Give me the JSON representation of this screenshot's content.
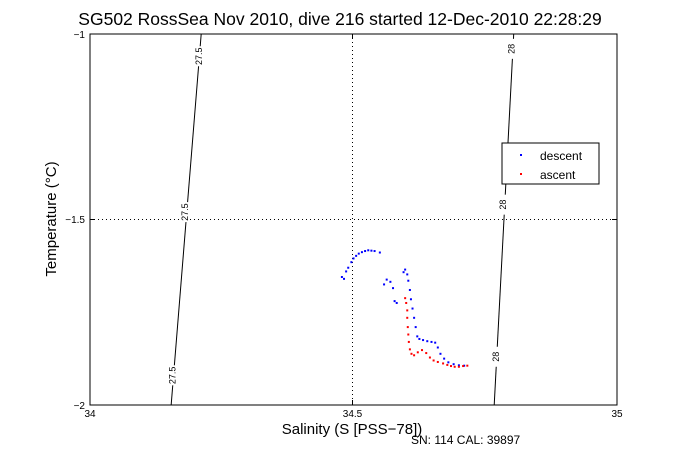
{
  "chart_data": {
    "type": "scatter",
    "title": "SG502 RossSea Nov 2010, dive 216 started 12-Dec-2010 22:28:29",
    "xlabel": "Salinity (S [PSS−78])",
    "ylabel": "Temperature (°C)",
    "xlim": [
      34,
      35
    ],
    "ylim": [
      -2,
      -1
    ],
    "x_ticks": [
      "34",
      "34.5",
      "35"
    ],
    "y_ticks": [
      "−1",
      "−1.5",
      "−2"
    ],
    "grid": "dotted at 34.5 and −1.5",
    "legend_position": "right",
    "footnote": "SN: 114  CAL: 39897",
    "isopycnals": [
      {
        "label": "27.5",
        "points": [
          [
            34.211,
            -1.0
          ],
          [
            34.154,
            -2.0
          ]
        ]
      },
      {
        "label": "28",
        "points": [
          [
            34.804,
            -1.0
          ],
          [
            34.767,
            -2.0
          ]
        ]
      }
    ],
    "isopycnal_labels": [
      {
        "text": "27.5",
        "x": 34.207,
        "y": -1.06
      },
      {
        "text": "27.5",
        "x": 34.18,
        "y": -1.48
      },
      {
        "text": "27.5",
        "x": 34.157,
        "y": -1.92
      },
      {
        "text": "28",
        "x": 34.8,
        "y": -1.04
      },
      {
        "text": "28",
        "x": 34.784,
        "y": -1.46
      },
      {
        "text": "28",
        "x": 34.77,
        "y": -1.87
      }
    ],
    "series": [
      {
        "name": "descent",
        "color": "#0000ff",
        "points": [
          [
            34.478,
            -1.655
          ],
          [
            34.482,
            -1.66
          ],
          [
            34.486,
            -1.64
          ],
          [
            34.49,
            -1.63
          ],
          [
            34.496,
            -1.615
          ],
          [
            34.5,
            -1.605
          ],
          [
            34.505,
            -1.598
          ],
          [
            34.51,
            -1.592
          ],
          [
            34.516,
            -1.588
          ],
          [
            34.522,
            -1.585
          ],
          [
            34.528,
            -1.583
          ],
          [
            34.534,
            -1.584
          ],
          [
            34.54,
            -1.585
          ],
          [
            34.55,
            -1.589
          ],
          [
            34.558,
            -1.675
          ],
          [
            34.563,
            -1.662
          ],
          [
            34.57,
            -1.668
          ],
          [
            34.575,
            -1.685
          ],
          [
            34.578,
            -1.72
          ],
          [
            34.582,
            -1.725
          ],
          [
            34.595,
            -1.642
          ],
          [
            34.598,
            -1.635
          ],
          [
            34.602,
            -1.648
          ],
          [
            34.604,
            -1.665
          ],
          [
            34.607,
            -1.69
          ],
          [
            34.609,
            -1.715
          ],
          [
            34.612,
            -1.74
          ],
          [
            34.615,
            -1.765
          ],
          [
            34.618,
            -1.79
          ],
          [
            34.621,
            -1.815
          ],
          [
            34.625,
            -1.822
          ],
          [
            34.632,
            -1.825
          ],
          [
            34.64,
            -1.828
          ],
          [
            34.648,
            -1.83
          ],
          [
            34.655,
            -1.832
          ],
          [
            34.66,
            -1.845
          ],
          [
            34.665,
            -1.862
          ],
          [
            34.672,
            -1.875
          ],
          [
            34.68,
            -1.885
          ],
          [
            34.69,
            -1.89
          ],
          [
            34.7,
            -1.893
          ],
          [
            34.71,
            -1.894
          ]
        ]
      },
      {
        "name": "ascent",
        "color": "#ff0000",
        "points": [
          [
            34.598,
            -1.712
          ],
          [
            34.6,
            -1.725
          ],
          [
            34.602,
            -1.745
          ],
          [
            34.602,
            -1.765
          ],
          [
            34.603,
            -1.79
          ],
          [
            34.604,
            -1.81
          ],
          [
            34.605,
            -1.83
          ],
          [
            34.607,
            -1.85
          ],
          [
            34.61,
            -1.862
          ],
          [
            34.615,
            -1.866
          ],
          [
            34.622,
            -1.858
          ],
          [
            34.63,
            -1.852
          ],
          [
            34.638,
            -1.86
          ],
          [
            34.645,
            -1.872
          ],
          [
            34.652,
            -1.88
          ],
          [
            34.66,
            -1.884
          ],
          [
            34.67,
            -1.888
          ],
          [
            34.678,
            -1.892
          ],
          [
            34.685,
            -1.895
          ],
          [
            34.692,
            -1.897
          ],
          [
            34.7,
            -1.897
          ],
          [
            34.708,
            -1.895
          ],
          [
            34.716,
            -1.894
          ]
        ]
      }
    ]
  }
}
